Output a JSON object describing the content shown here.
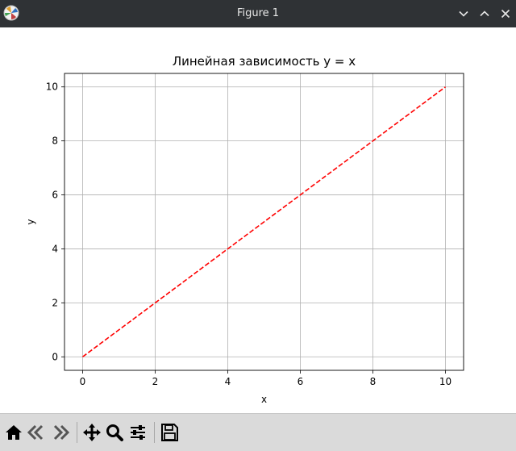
{
  "window": {
    "title": "Figure 1"
  },
  "toolbar": {
    "buttons": [
      {
        "name": "home",
        "icon": "home-icon"
      },
      {
        "name": "back",
        "icon": "back-arrow-icon"
      },
      {
        "name": "forward",
        "icon": "forward-arrow-icon"
      },
      {
        "name": "pan",
        "icon": "move-icon"
      },
      {
        "name": "zoom",
        "icon": "magnifier-icon"
      },
      {
        "name": "configure-subplots",
        "icon": "sliders-icon"
      },
      {
        "name": "save",
        "icon": "floppy-disk-icon"
      }
    ]
  },
  "chart_data": {
    "type": "line",
    "title": "Линейная зависимость y = x",
    "xlabel": "x",
    "ylabel": "y",
    "xlim": [
      -0.5,
      10.5
    ],
    "ylim": [
      -0.5,
      10.5
    ],
    "xticks": [
      "0",
      "2",
      "4",
      "6",
      "8",
      "10"
    ],
    "yticks": [
      "0",
      "2",
      "4",
      "6",
      "8",
      "10"
    ],
    "grid": true,
    "series": [
      {
        "x": [
          0,
          10
        ],
        "y": [
          0,
          10
        ],
        "color": "#ff0000",
        "linestyle": "dashed"
      }
    ]
  }
}
